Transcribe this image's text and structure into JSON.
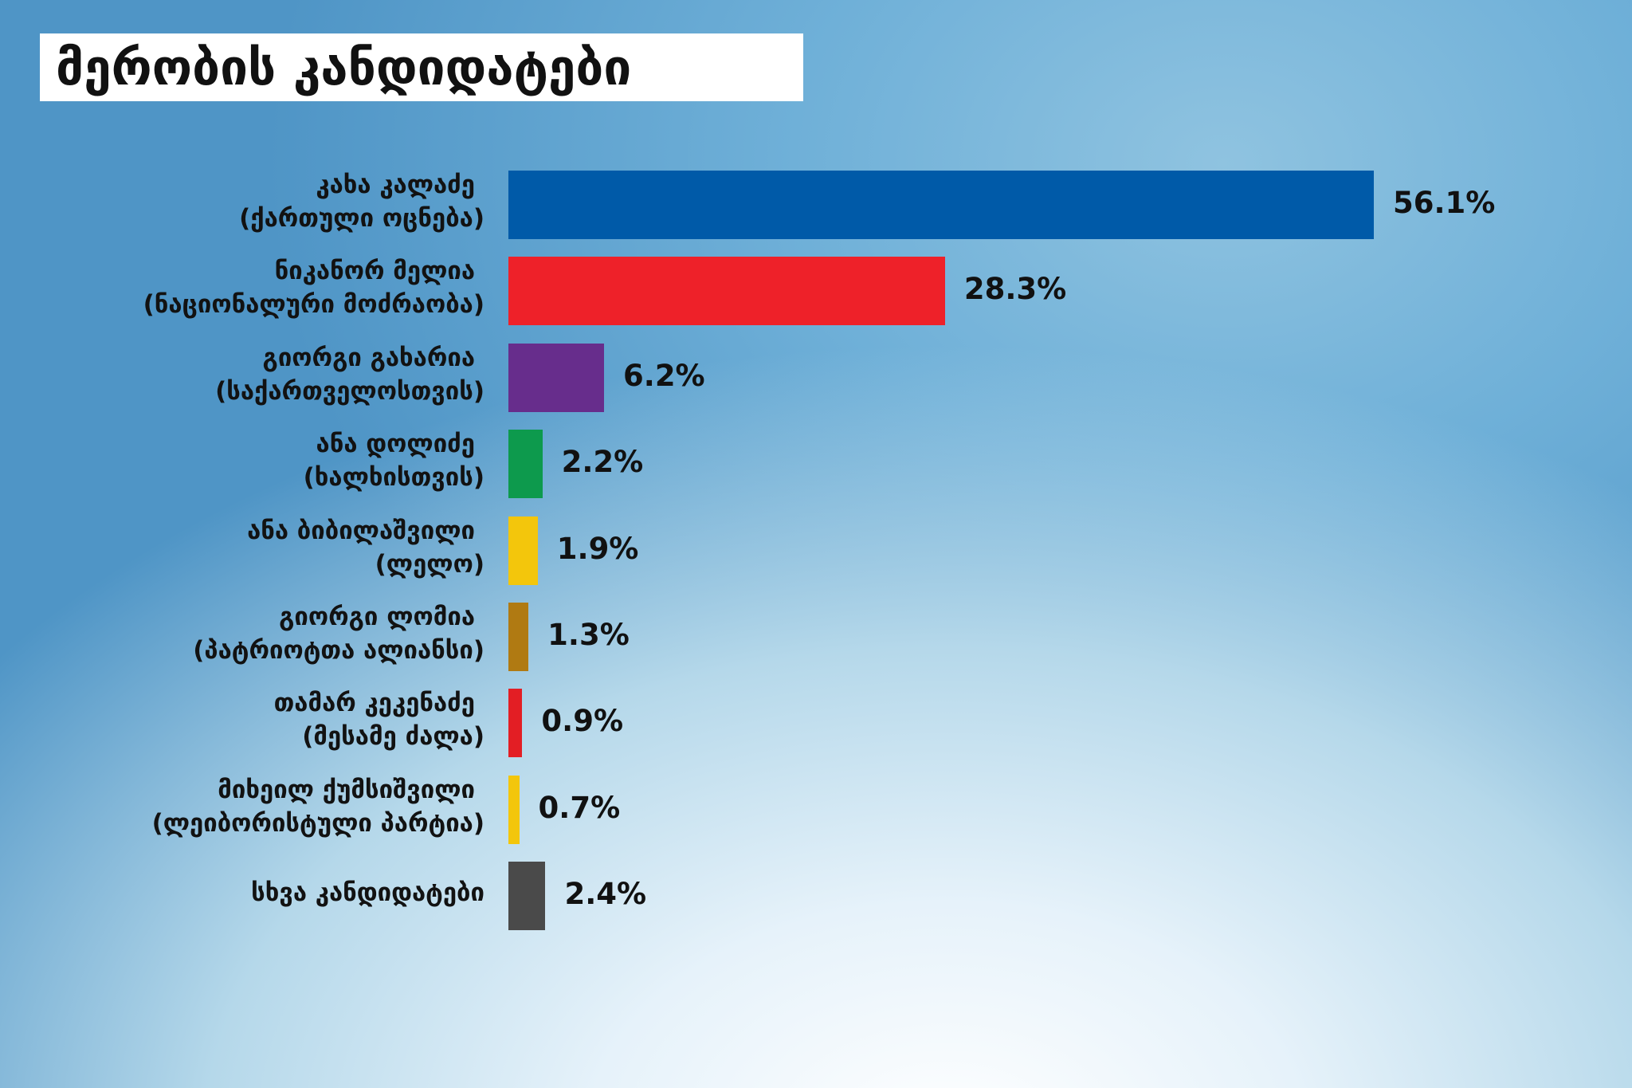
{
  "title": "მერობის კანდიდატები",
  "chart_data": {
    "type": "bar",
    "orientation": "horizontal",
    "title": "მერობის კანდიდატები",
    "xlabel": "",
    "ylabel": "",
    "xlim": [
      0,
      56.1
    ],
    "grid": false,
    "legend": "none",
    "categories": [
      {
        "name": "კახა კალაძე",
        "party": "(ქართული ოცნება)"
      },
      {
        "name": "ნიკანორ მელია",
        "party": "(ნაციონალური მოძრაობა)"
      },
      {
        "name": "გიორგი გახარია",
        "party": "(საქართველოსთვის)"
      },
      {
        "name": "ანა დოლიძე",
        "party": "(ხალხისთვის)"
      },
      {
        "name": "ანა ბიბილაშვილი",
        "party": "(ლელო)"
      },
      {
        "name": "გიორგი ლომია",
        "party": "(პატრიოტთა ალიანსი)"
      },
      {
        "name": "თამარ კეკენაძე",
        "party": "(მესამე ძალა)"
      },
      {
        "name": "მიხეილ ქუმსიშვილი",
        "party": "(ლეიბორისტული პარტია)"
      },
      {
        "name": "სხვა კანდიდატები",
        "party": ""
      }
    ],
    "values": [
      56.1,
      28.3,
      6.2,
      2.2,
      1.9,
      1.3,
      0.9,
      0.7,
      2.4
    ],
    "value_labels": [
      "56.1%",
      "28.3%",
      "6.2%",
      "2.2%",
      "1.9%",
      "1.3%",
      "0.9%",
      "0.7%",
      "2.4%"
    ],
    "colors": [
      "#005aa8",
      "#ee2129",
      "#672d8c",
      "#0d9a4d",
      "#f3c60c",
      "#b07a12",
      "#e31e24",
      "#f3c60c",
      "#4a4a4a"
    ]
  }
}
